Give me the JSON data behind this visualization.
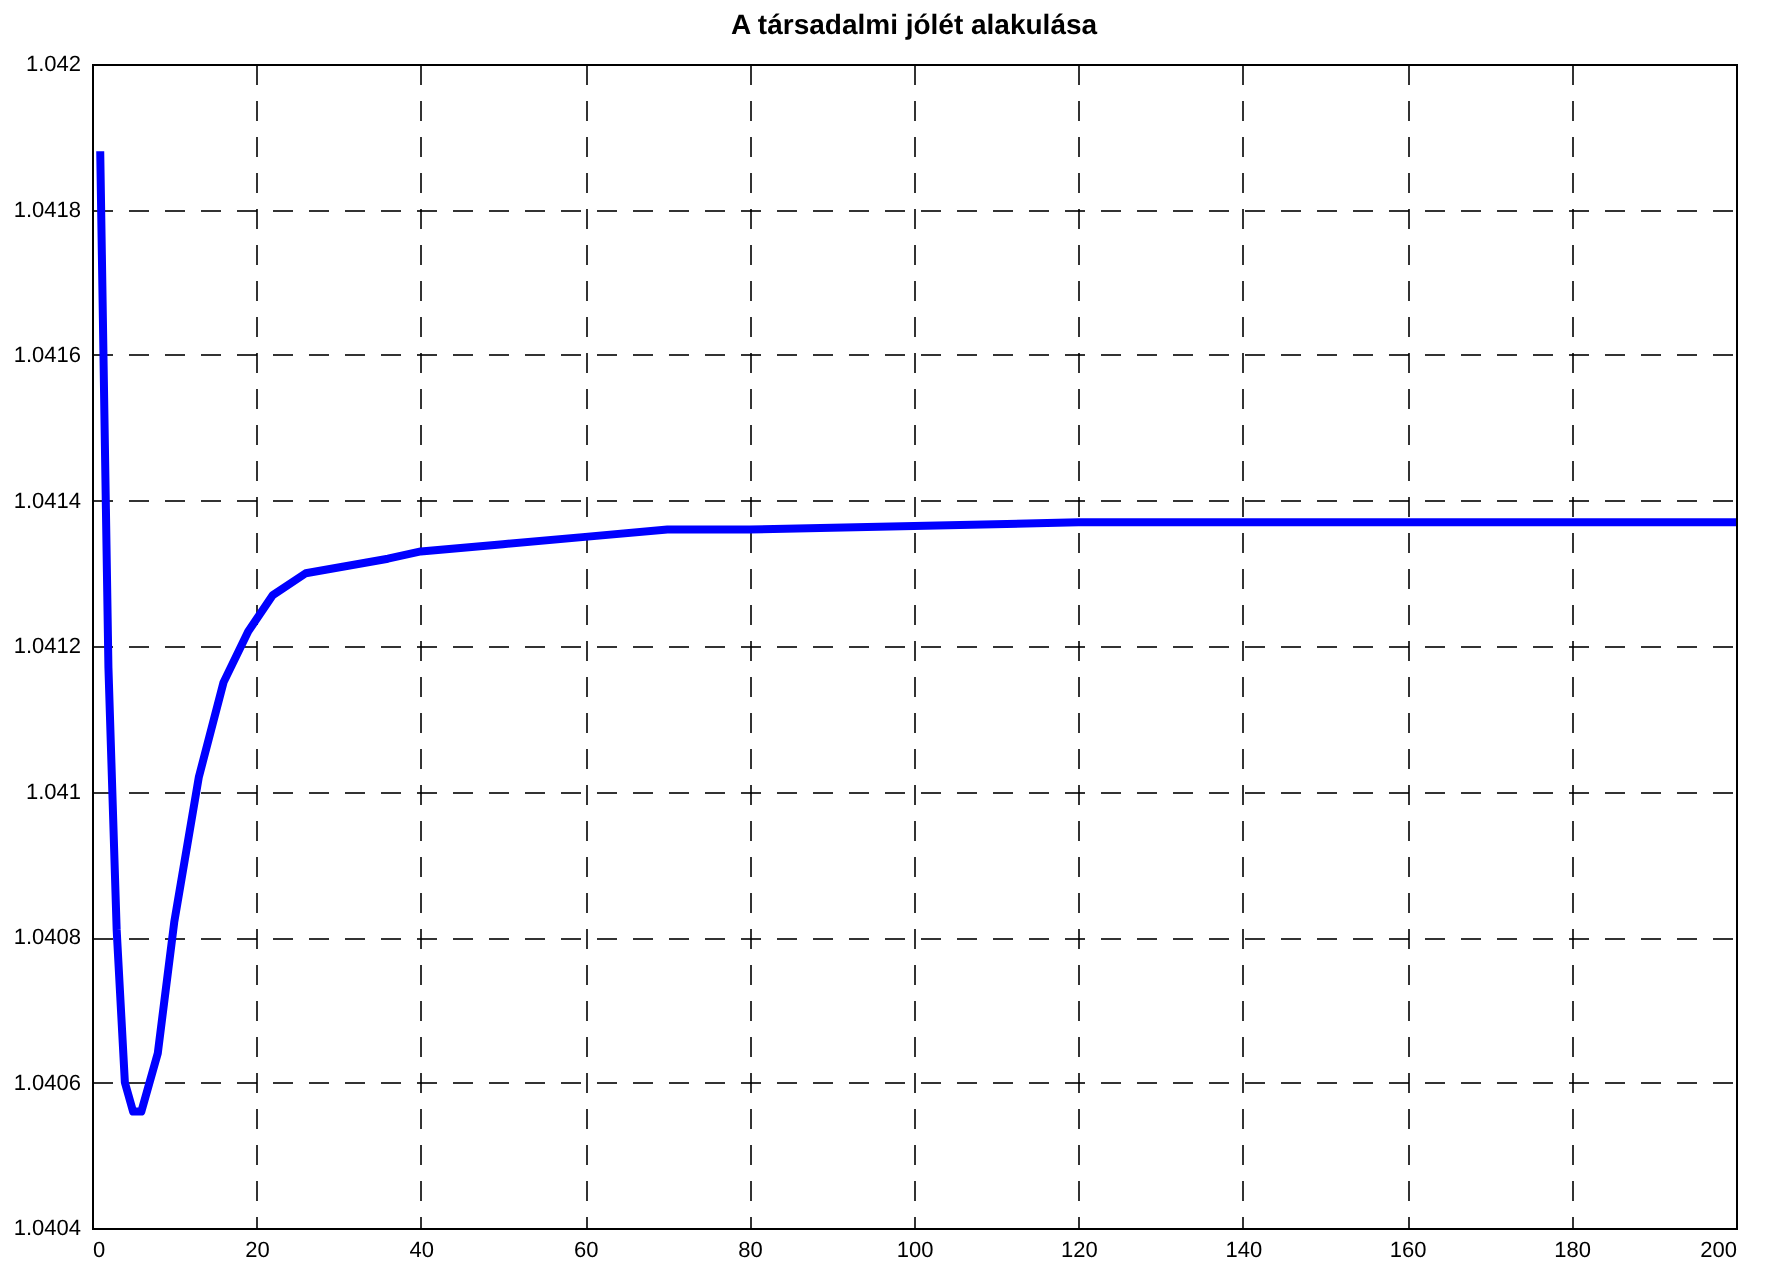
{
  "chart_data": {
    "type": "line",
    "title": "A társadalmi jólét alakulása",
    "x": [
      1,
      2,
      3,
      4,
      5,
      6,
      8,
      10,
      13,
      16,
      19,
      22,
      26,
      31,
      36,
      40,
      50,
      60,
      70,
      80,
      100,
      120,
      140,
      160,
      180,
      200
    ],
    "series": [
      {
        "color": "#0000ff",
        "values": [
          1.04188,
          1.04117,
          1.04081,
          1.0406,
          1.04056,
          1.04056,
          1.04064,
          1.04082,
          1.04102,
          1.04115,
          1.04122,
          1.04127,
          1.0413,
          1.04131,
          1.04132,
          1.04133,
          1.04134,
          1.04135,
          1.04136,
          1.04136,
          1.041365,
          1.04137,
          1.04137,
          1.04137,
          1.04137,
          1.04137
        ]
      }
    ],
    "xlim": [
      0,
      200
    ],
    "xticks": [
      0,
      20,
      40,
      60,
      80,
      100,
      120,
      140,
      160,
      180,
      200
    ],
    "ylim": [
      1.0404,
      1.042
    ],
    "yticks": [
      1.0404,
      1.0406,
      1.0408,
      1.041,
      1.0412,
      1.0414,
      1.0416,
      1.0418,
      1.042
    ],
    "grid": true,
    "line_style": "solid"
  }
}
